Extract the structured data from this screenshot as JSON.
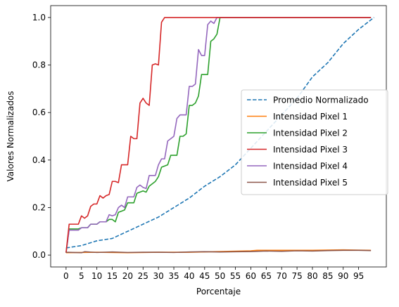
{
  "chart_data": {
    "type": "line",
    "title": "",
    "xlabel": "Porcentaje",
    "ylabel": "Valores Normalizados",
    "xlim": [
      -5,
      104
    ],
    "ylim": [
      -0.05,
      1.05
    ],
    "xticks": [
      "0",
      "5",
      "10",
      "15",
      "20",
      "25",
      "30",
      "35",
      "40",
      "45",
      "50",
      "55",
      "60",
      "65",
      "70",
      "75",
      "80",
      "85",
      "90",
      "95"
    ],
    "yticks": [
      "0.0",
      "0.2",
      "0.4",
      "0.6",
      "0.8",
      "1.0"
    ],
    "grid": false,
    "legend_position": "center-right",
    "series": [
      {
        "name": "Promedio Normalizado",
        "color": "#1f77b4",
        "style": "dashed",
        "points": [
          [
            0,
            0.03
          ],
          [
            5,
            0.04
          ],
          [
            10,
            0.06
          ],
          [
            15,
            0.07
          ],
          [
            20,
            0.1
          ],
          [
            25,
            0.13
          ],
          [
            30,
            0.16
          ],
          [
            35,
            0.2
          ],
          [
            40,
            0.24
          ],
          [
            45,
            0.29
          ],
          [
            50,
            0.33
          ],
          [
            55,
            0.38
          ],
          [
            60,
            0.45
          ],
          [
            65,
            0.52
          ],
          [
            70,
            0.59
          ],
          [
            75,
            0.66
          ],
          [
            80,
            0.75
          ],
          [
            85,
            0.81
          ],
          [
            90,
            0.89
          ],
          [
            95,
            0.95
          ],
          [
            100,
            1.0
          ]
        ]
      },
      {
        "name": "Intensidad Pixel 1",
        "color": "#ff7f0e",
        "style": "solid",
        "points": [
          [
            0,
            0.01
          ],
          [
            10,
            0.012
          ],
          [
            20,
            0.01
          ],
          [
            30,
            0.012
          ],
          [
            40,
            0.012
          ],
          [
            50,
            0.015
          ],
          [
            60,
            0.018
          ],
          [
            62,
            0.02
          ],
          [
            70,
            0.02
          ],
          [
            80,
            0.02
          ],
          [
            90,
            0.022
          ],
          [
            99,
            0.02
          ]
        ]
      },
      {
        "name": "Intensidad Pixel 2",
        "color": "#2ca02c",
        "style": "solid",
        "points": [
          [
            0,
            0.01
          ],
          [
            1,
            0.11
          ],
          [
            4,
            0.11
          ],
          [
            5,
            0.115
          ],
          [
            7,
            0.115
          ],
          [
            8,
            0.13
          ],
          [
            10,
            0.13
          ],
          [
            11,
            0.14
          ],
          [
            13,
            0.14
          ],
          [
            14,
            0.15
          ],
          [
            15,
            0.15
          ],
          [
            16,
            0.14
          ],
          [
            17,
            0.18
          ],
          [
            19,
            0.19
          ],
          [
            20,
            0.22
          ],
          [
            22,
            0.22
          ],
          [
            23,
            0.26
          ],
          [
            25,
            0.27
          ],
          [
            26,
            0.265
          ],
          [
            27,
            0.29
          ],
          [
            28,
            0.3
          ],
          [
            29,
            0.31
          ],
          [
            30,
            0.33
          ],
          [
            31,
            0.37
          ],
          [
            33,
            0.38
          ],
          [
            34,
            0.42
          ],
          [
            36,
            0.42
          ],
          [
            37,
            0.5
          ],
          [
            38,
            0.5
          ],
          [
            39,
            0.51
          ],
          [
            40,
            0.63
          ],
          [
            41,
            0.63
          ],
          [
            42,
            0.64
          ],
          [
            43,
            0.67
          ],
          [
            44,
            0.76
          ],
          [
            46,
            0.76
          ],
          [
            47,
            0.9
          ],
          [
            48,
            0.91
          ],
          [
            49,
            0.93
          ],
          [
            50,
            1.0
          ],
          [
            99,
            1.0
          ]
        ]
      },
      {
        "name": "Intensidad Pixel 3",
        "color": "#d62728",
        "style": "solid",
        "points": [
          [
            0,
            0.01
          ],
          [
            1,
            0.13
          ],
          [
            4,
            0.13
          ],
          [
            5,
            0.165
          ],
          [
            6,
            0.155
          ],
          [
            7,
            0.165
          ],
          [
            8,
            0.205
          ],
          [
            9,
            0.215
          ],
          [
            10,
            0.215
          ],
          [
            11,
            0.25
          ],
          [
            12,
            0.24
          ],
          [
            13,
            0.25
          ],
          [
            14,
            0.255
          ],
          [
            15,
            0.31
          ],
          [
            16,
            0.31
          ],
          [
            17,
            0.305
          ],
          [
            18,
            0.38
          ],
          [
            20,
            0.38
          ],
          [
            21,
            0.5
          ],
          [
            22,
            0.49
          ],
          [
            23,
            0.49
          ],
          [
            24,
            0.64
          ],
          [
            25,
            0.66
          ],
          [
            26,
            0.64
          ],
          [
            27,
            0.63
          ],
          [
            28,
            0.8
          ],
          [
            29,
            0.805
          ],
          [
            30,
            0.8
          ],
          [
            31,
            0.98
          ],
          [
            32,
            1.0
          ],
          [
            99,
            1.0
          ]
        ]
      },
      {
        "name": "Intensidad Pixel 4",
        "color": "#9467bd",
        "style": "solid",
        "points": [
          [
            0,
            0.01
          ],
          [
            1,
            0.105
          ],
          [
            4,
            0.105
          ],
          [
            5,
            0.115
          ],
          [
            7,
            0.115
          ],
          [
            8,
            0.13
          ],
          [
            10,
            0.13
          ],
          [
            11,
            0.14
          ],
          [
            13,
            0.14
          ],
          [
            14,
            0.17
          ],
          [
            15,
            0.165
          ],
          [
            16,
            0.17
          ],
          [
            17,
            0.2
          ],
          [
            18,
            0.21
          ],
          [
            19,
            0.2
          ],
          [
            20,
            0.245
          ],
          [
            22,
            0.245
          ],
          [
            23,
            0.285
          ],
          [
            24,
            0.295
          ],
          [
            25,
            0.285
          ],
          [
            26,
            0.28
          ],
          [
            27,
            0.335
          ],
          [
            29,
            0.335
          ],
          [
            30,
            0.38
          ],
          [
            31,
            0.405
          ],
          [
            32,
            0.405
          ],
          [
            33,
            0.48
          ],
          [
            34,
            0.49
          ],
          [
            35,
            0.5
          ],
          [
            36,
            0.575
          ],
          [
            37,
            0.59
          ],
          [
            39,
            0.59
          ],
          [
            40,
            0.71
          ],
          [
            41,
            0.71
          ],
          [
            42,
            0.72
          ],
          [
            43,
            0.865
          ],
          [
            44,
            0.84
          ],
          [
            45,
            0.84
          ],
          [
            46,
            0.97
          ],
          [
            47,
            0.985
          ],
          [
            48,
            0.975
          ],
          [
            49,
            1.0
          ],
          [
            99,
            1.0
          ]
        ]
      },
      {
        "name": "Intensidad Pixel 5",
        "color": "#8c564b",
        "style": "solid",
        "points": [
          [
            0,
            0.012
          ],
          [
            5,
            0.01
          ],
          [
            6,
            0.014
          ],
          [
            10,
            0.011
          ],
          [
            15,
            0.013
          ],
          [
            20,
            0.011
          ],
          [
            25,
            0.012
          ],
          [
            30,
            0.012
          ],
          [
            35,
            0.011
          ],
          [
            40,
            0.013
          ],
          [
            45,
            0.014
          ],
          [
            50,
            0.013
          ],
          [
            55,
            0.014
          ],
          [
            60,
            0.015
          ],
          [
            65,
            0.017
          ],
          [
            70,
            0.016
          ],
          [
            75,
            0.018
          ],
          [
            80,
            0.017
          ],
          [
            85,
            0.019
          ],
          [
            90,
            0.02
          ],
          [
            95,
            0.02
          ],
          [
            99,
            0.019
          ]
        ]
      }
    ]
  }
}
